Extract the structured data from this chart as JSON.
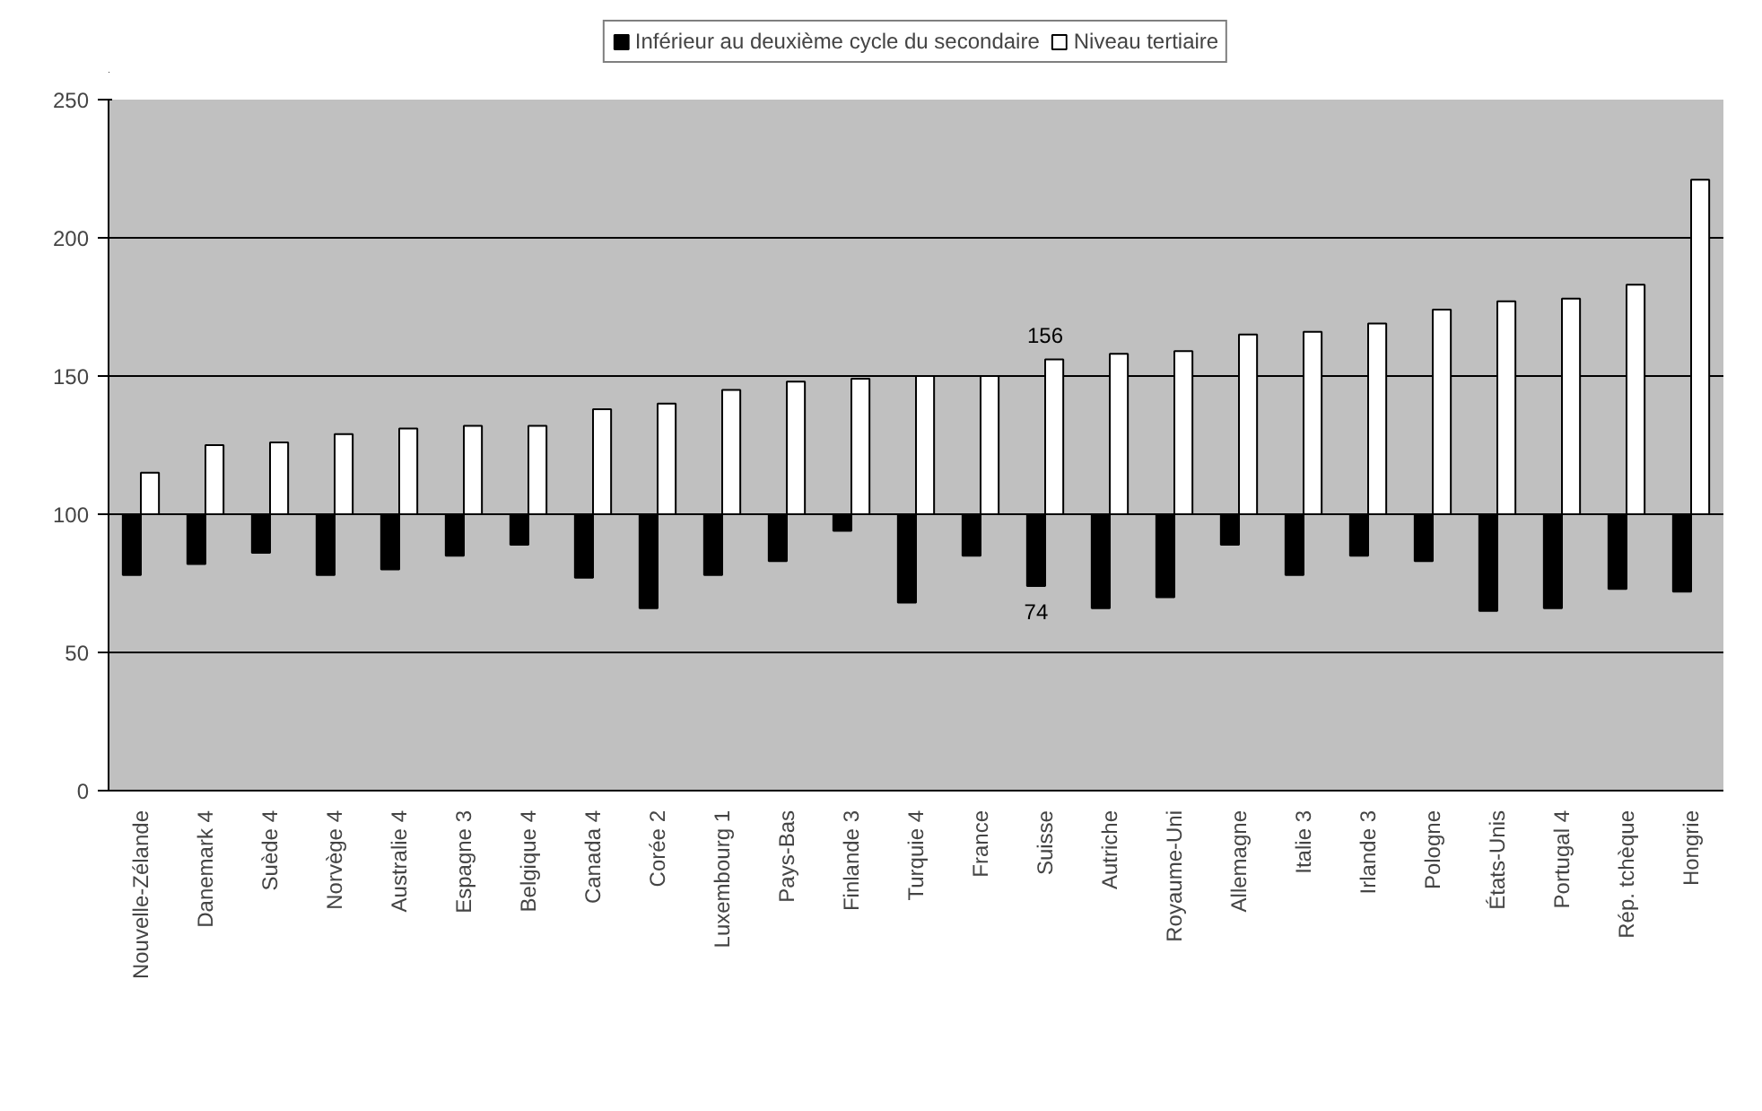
{
  "chart_data": {
    "type": "bar",
    "categories": [
      "Nouvelle-Zélande",
      "Danemark 4",
      "Suède 4",
      "Norvège 4",
      "Australie 4",
      "Espagne 3",
      "Belgique 4",
      "Canada 4",
      "Corée 2",
      "Luxembourg 1",
      "Pays-Bas",
      "Finlande 3",
      "Turquie 4",
      "France",
      "Suisse",
      "Autriche",
      "Royaume-Uni",
      "Allemagne",
      "Italie 3",
      "Irlande 3",
      "Pologne",
      "États-Unis",
      "Portugal 4",
      "Rép. tchèque",
      "Hongrie"
    ],
    "series": [
      {
        "name": "Inférieur au deuxième cycle du secondaire",
        "color": "#000000",
        "base": [
          100,
          100,
          100,
          100,
          100,
          100,
          100,
          100,
          100,
          100,
          100,
          100,
          100,
          100,
          100,
          100,
          100,
          100,
          100,
          100,
          100,
          100,
          100,
          100,
          100
        ],
        "values": [
          -22,
          -18,
          -14,
          -22,
          -20,
          -15,
          -11,
          -23,
          -34,
          -22,
          -17,
          -6,
          -32,
          -15,
          -26,
          -34,
          -30,
          -11,
          -22,
          -15,
          -17,
          -35,
          -34,
          -27,
          -28
        ]
      },
      {
        "name": "Niveau tertiaire",
        "color": "#ffffff",
        "base": [
          100,
          100,
          100,
          100,
          100,
          100,
          100,
          100,
          100,
          100,
          100,
          100,
          100,
          100,
          100,
          100,
          100,
          100,
          100,
          100,
          100,
          100,
          100,
          100,
          100
        ],
        "values": [
          15,
          25,
          26,
          29,
          31,
          32,
          32,
          38,
          40,
          45,
          48,
          49,
          50,
          50,
          56,
          58,
          59,
          65,
          66,
          69,
          74,
          77,
          78,
          83,
          121
        ]
      }
    ],
    "annotations": [
      "156",
      "74"
    ],
    "ylim": [
      0,
      250
    ],
    "yticks": [
      0,
      50,
      100,
      150,
      200,
      250
    ],
    "grid": "y",
    "legend": "top"
  }
}
